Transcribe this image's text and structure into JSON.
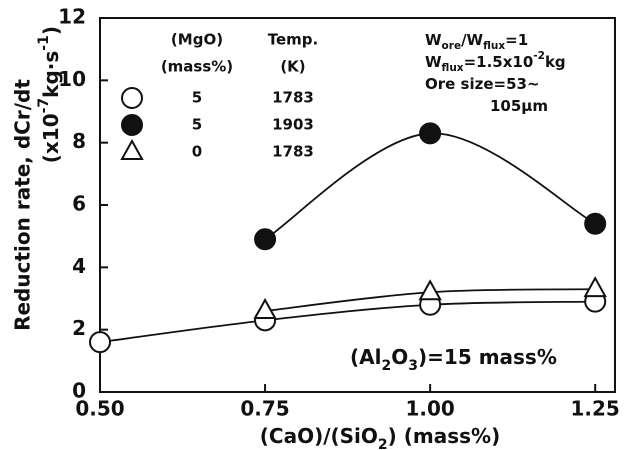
{
  "chart_data": {
    "type": "scatter",
    "xlim": [
      0.5,
      1.28
    ],
    "ylim": [
      0,
      12
    ],
    "xticks": [
      {
        "value": 0.5,
        "label": "0.50"
      },
      0.75,
      {
        "value": 1.0,
        "label": "1.00"
      },
      1.25
    ],
    "yticks": [
      0,
      2,
      4,
      6,
      8,
      10,
      12
    ],
    "x_label": [
      {
        "t": "(CaO)/(SiO"
      },
      {
        "t": "2",
        "s": "sub"
      },
      {
        "t": ")   (mass%)"
      }
    ],
    "y_label": "Reduction rate, dCr/dt",
    "y_unit": [
      {
        "t": "(x10"
      },
      {
        "t": "-7",
        "s": "super"
      },
      {
        "t": "kg·s"
      },
      {
        "t": "-1",
        "s": "super"
      },
      {
        "t": ")"
      }
    ],
    "legend_headers": {
      "mgo": [
        "(MgO)",
        "(mass%)"
      ],
      "temp": [
        "Temp.",
        "(K)"
      ]
    },
    "series": [
      {
        "mgo": "5",
        "temp": "1783",
        "marker": "open-circle",
        "color": "#111",
        "x": [
          0.5,
          0.75,
          1.0,
          1.25
        ],
        "values": [
          1.6,
          2.3,
          2.8,
          2.9
        ]
      },
      {
        "mgo": "5",
        "temp": "1903",
        "marker": "filled-circle",
        "color": "#111",
        "x": [
          0.75,
          1.0,
          1.25
        ],
        "values": [
          4.9,
          8.3,
          5.4
        ]
      },
      {
        "mgo": "0",
        "temp": "1783",
        "marker": "open-triangle",
        "color": "#111",
        "x": [
          0.75,
          1.0,
          1.25
        ],
        "values": [
          2.6,
          3.2,
          3.3
        ]
      }
    ],
    "annotations": [
      {
        "parts": [
          {
            "t": "W"
          },
          {
            "t": "ore",
            "s": "sub"
          },
          {
            "t": "/W"
          },
          {
            "t": "flux",
            "s": "sub"
          },
          {
            "t": "=1"
          }
        ]
      },
      {
        "parts": [
          {
            "t": "W"
          },
          {
            "t": "flux",
            "s": "sub"
          },
          {
            "t": "=1.5x10"
          },
          {
            "t": "-2",
            "s": "super"
          },
          {
            "t": "kg"
          }
        ]
      },
      {
        "parts": [
          {
            "t": "Ore size=53~"
          }
        ]
      },
      {
        "parts": [
          {
            "t": "105μm"
          }
        ]
      },
      {
        "parts": [
          {
            "t": "(Al"
          },
          {
            "t": "2",
            "s": "sub"
          },
          {
            "t": "O"
          },
          {
            "t": "3",
            "s": "sub"
          },
          {
            "t": ")=15 mass%"
          }
        ]
      }
    ]
  }
}
